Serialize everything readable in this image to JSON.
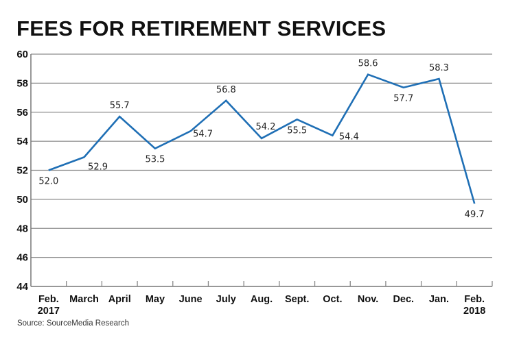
{
  "title": "FEES FOR RETIREMENT SERVICES",
  "source": "Source: SourceMedia Research",
  "colors": {
    "line": "#1f6fb5",
    "grid": "#8c8c8c",
    "text": "#111111"
  },
  "chart_data": {
    "type": "line",
    "title": "FEES FOR RETIREMENT SERVICES",
    "xlabel": "",
    "ylabel": "",
    "categories": [
      "Feb. 2017",
      "March",
      "April",
      "May",
      "June",
      "July",
      "Aug.",
      "Sept.",
      "Oct.",
      "Nov.",
      "Dec.",
      "Jan.",
      "Feb. 2018"
    ],
    "series": [
      {
        "name": "Fees for retirement services",
        "values": [
          52.0,
          52.9,
          55.7,
          53.5,
          54.7,
          56.8,
          54.2,
          55.5,
          54.4,
          58.6,
          57.7,
          58.3,
          49.7
        ]
      }
    ],
    "data_labels": [
      "52.0",
      "52.9",
      "55.7",
      "53.5",
      "54.7",
      "56.8",
      "54.2",
      "55.5",
      "54.4",
      "58.6",
      "57.7",
      "58.3",
      "49.7"
    ],
    "ylim": [
      44,
      60
    ],
    "yticks": [
      44,
      46,
      48,
      50,
      52,
      54,
      56,
      58,
      60
    ],
    "grid": true,
    "legend": "none",
    "source": "Source: SourceMedia Research"
  },
  "x_labels": [
    {
      "line1": "Feb.",
      "line2": "2017"
    },
    {
      "line1": "March",
      "line2": ""
    },
    {
      "line1": "April",
      "line2": ""
    },
    {
      "line1": "May",
      "line2": ""
    },
    {
      "line1": "June",
      "line2": ""
    },
    {
      "line1": "July",
      "line2": ""
    },
    {
      "line1": "Aug.",
      "line2": ""
    },
    {
      "line1": "Sept.",
      "line2": ""
    },
    {
      "line1": "Oct.",
      "line2": ""
    },
    {
      "line1": "Nov.",
      "line2": ""
    },
    {
      "line1": "Dec.",
      "line2": ""
    },
    {
      "line1": "Jan.",
      "line2": ""
    },
    {
      "line1": "Feb.",
      "line2": "2018"
    }
  ]
}
